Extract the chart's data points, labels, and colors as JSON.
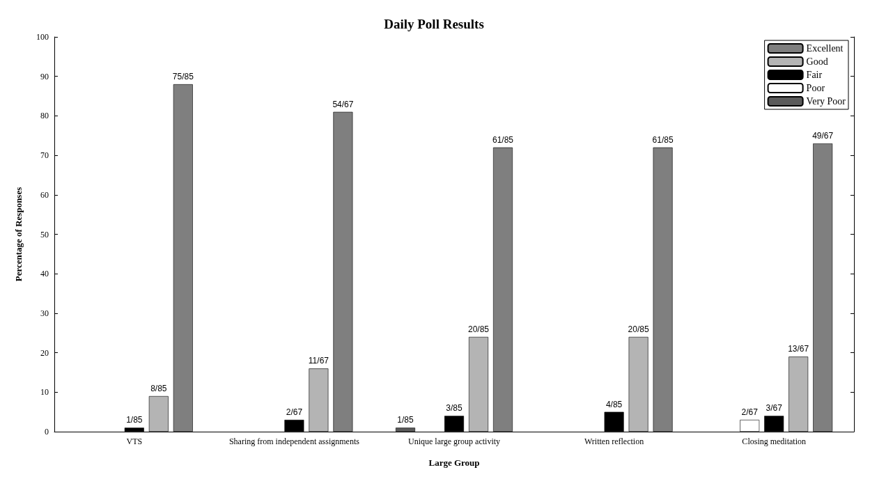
{
  "chart_data": {
    "type": "bar",
    "title": "Daily Poll Results",
    "xlabel": "Large Group",
    "ylabel": "Percentage of Responses",
    "categories": [
      "VTS",
      "Sharing from independent assignments",
      "Unique large group activity",
      "Written reflection",
      "Closing meditation"
    ],
    "ylim": [
      0,
      100
    ],
    "yticks": [
      0,
      10,
      20,
      30,
      40,
      50,
      60,
      70,
      80,
      90,
      100
    ],
    "grid": false,
    "legend": "top right",
    "series": [
      {
        "name": "Very Poor",
        "color": "#5a5a5a",
        "values": [
          null,
          null,
          1,
          null,
          null
        ],
        "value_labels": [
          null,
          null,
          "1/85",
          null,
          null
        ]
      },
      {
        "name": "Poor",
        "color": "#ffffff",
        "values": [
          null,
          null,
          null,
          null,
          3
        ],
        "value_labels": [
          null,
          null,
          null,
          null,
          "2/67"
        ]
      },
      {
        "name": "Fair",
        "color": "#000000",
        "values": [
          1,
          3,
          4,
          5,
          4
        ],
        "value_labels": [
          "1/85",
          "2/67",
          "3/85",
          "4/85",
          "3/67"
        ]
      },
      {
        "name": "Good",
        "color": "#b4b4b4",
        "values": [
          9,
          16,
          24,
          24,
          19
        ],
        "value_labels": [
          "8/85",
          "11/67",
          "20/85",
          "20/85",
          "13/67"
        ]
      },
      {
        "name": "Excellent",
        "color": "#7f7f7f",
        "values": [
          88,
          81,
          72,
          72,
          73
        ],
        "value_labels": [
          "75/85",
          "54/67",
          "61/85",
          "61/85",
          "49/67"
        ]
      }
    ]
  }
}
